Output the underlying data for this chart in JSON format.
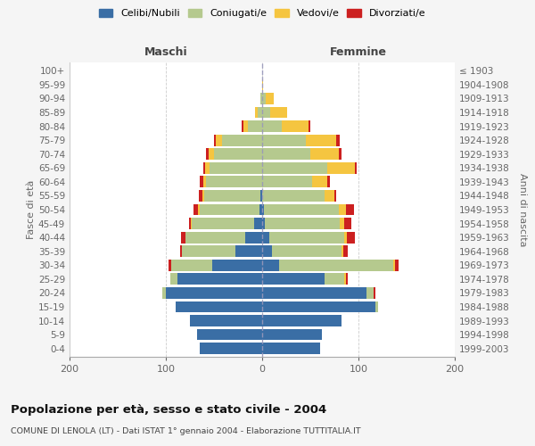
{
  "age_groups": [
    "0-4",
    "5-9",
    "10-14",
    "15-19",
    "20-24",
    "25-29",
    "30-34",
    "35-39",
    "40-44",
    "45-49",
    "50-54",
    "55-59",
    "60-64",
    "65-69",
    "70-74",
    "75-79",
    "80-84",
    "85-89",
    "90-94",
    "95-99",
    "100+"
  ],
  "birth_years": [
    "1999-2003",
    "1994-1998",
    "1989-1993",
    "1984-1988",
    "1979-1983",
    "1974-1978",
    "1969-1973",
    "1964-1968",
    "1959-1963",
    "1954-1958",
    "1949-1953",
    "1944-1948",
    "1939-1943",
    "1934-1938",
    "1929-1933",
    "1924-1928",
    "1919-1923",
    "1914-1918",
    "1909-1913",
    "1904-1908",
    "≤ 1903"
  ],
  "male_celibe": [
    65,
    68,
    75,
    90,
    100,
    88,
    52,
    28,
    18,
    8,
    3,
    2,
    0,
    0,
    0,
    0,
    0,
    0,
    0,
    0,
    0
  ],
  "male_coniugato": [
    0,
    0,
    0,
    0,
    4,
    7,
    42,
    55,
    62,
    65,
    62,
    58,
    58,
    55,
    50,
    42,
    15,
    5,
    2,
    0,
    0
  ],
  "male_vedovo": [
    0,
    0,
    0,
    0,
    0,
    0,
    0,
    0,
    0,
    1,
    2,
    2,
    3,
    4,
    6,
    6,
    4,
    2,
    0,
    0,
    0
  ],
  "male_divorziato": [
    0,
    0,
    0,
    0,
    0,
    0,
    3,
    2,
    4,
    2,
    4,
    4,
    4,
    2,
    2,
    2,
    2,
    0,
    0,
    0,
    0
  ],
  "female_nubile": [
    60,
    62,
    82,
    118,
    108,
    65,
    18,
    10,
    7,
    3,
    2,
    0,
    0,
    0,
    0,
    0,
    0,
    0,
    0,
    0,
    0
  ],
  "female_coniugata": [
    0,
    0,
    0,
    2,
    8,
    20,
    118,
    72,
    78,
    78,
    78,
    65,
    52,
    68,
    50,
    45,
    20,
    8,
    4,
    0,
    0
  ],
  "female_vedova": [
    0,
    0,
    0,
    0,
    0,
    2,
    2,
    2,
    3,
    4,
    7,
    10,
    16,
    28,
    30,
    32,
    28,
    18,
    8,
    1,
    0
  ],
  "female_divorziata": [
    0,
    0,
    0,
    0,
    2,
    2,
    4,
    5,
    8,
    8,
    8,
    2,
    2,
    2,
    2,
    4,
    2,
    0,
    0,
    0,
    0
  ],
  "colors_celibe": "#3a6ea5",
  "colors_coniugato": "#b5c98e",
  "colors_vedovo": "#f5c540",
  "colors_divorziato": "#cc2020",
  "title_main": "Popolazione per età, sesso e stato civile - 2004",
  "title_sub": "COMUNE DI LENOLA (LT) - Dati ISTAT 1° gennaio 2004 - Elaborazione TUTTITALIA.IT",
  "label_maschi": "Maschi",
  "label_femmine": "Femmine",
  "ylabel_left": "Fasce di età",
  "ylabel_right": "Anni di nascita",
  "legend_labels": [
    "Celibi/Nubili",
    "Coniugati/e",
    "Vedovi/e",
    "Divorziati/e"
  ],
  "xlim": 200,
  "bg_color": "#f5f5f5"
}
